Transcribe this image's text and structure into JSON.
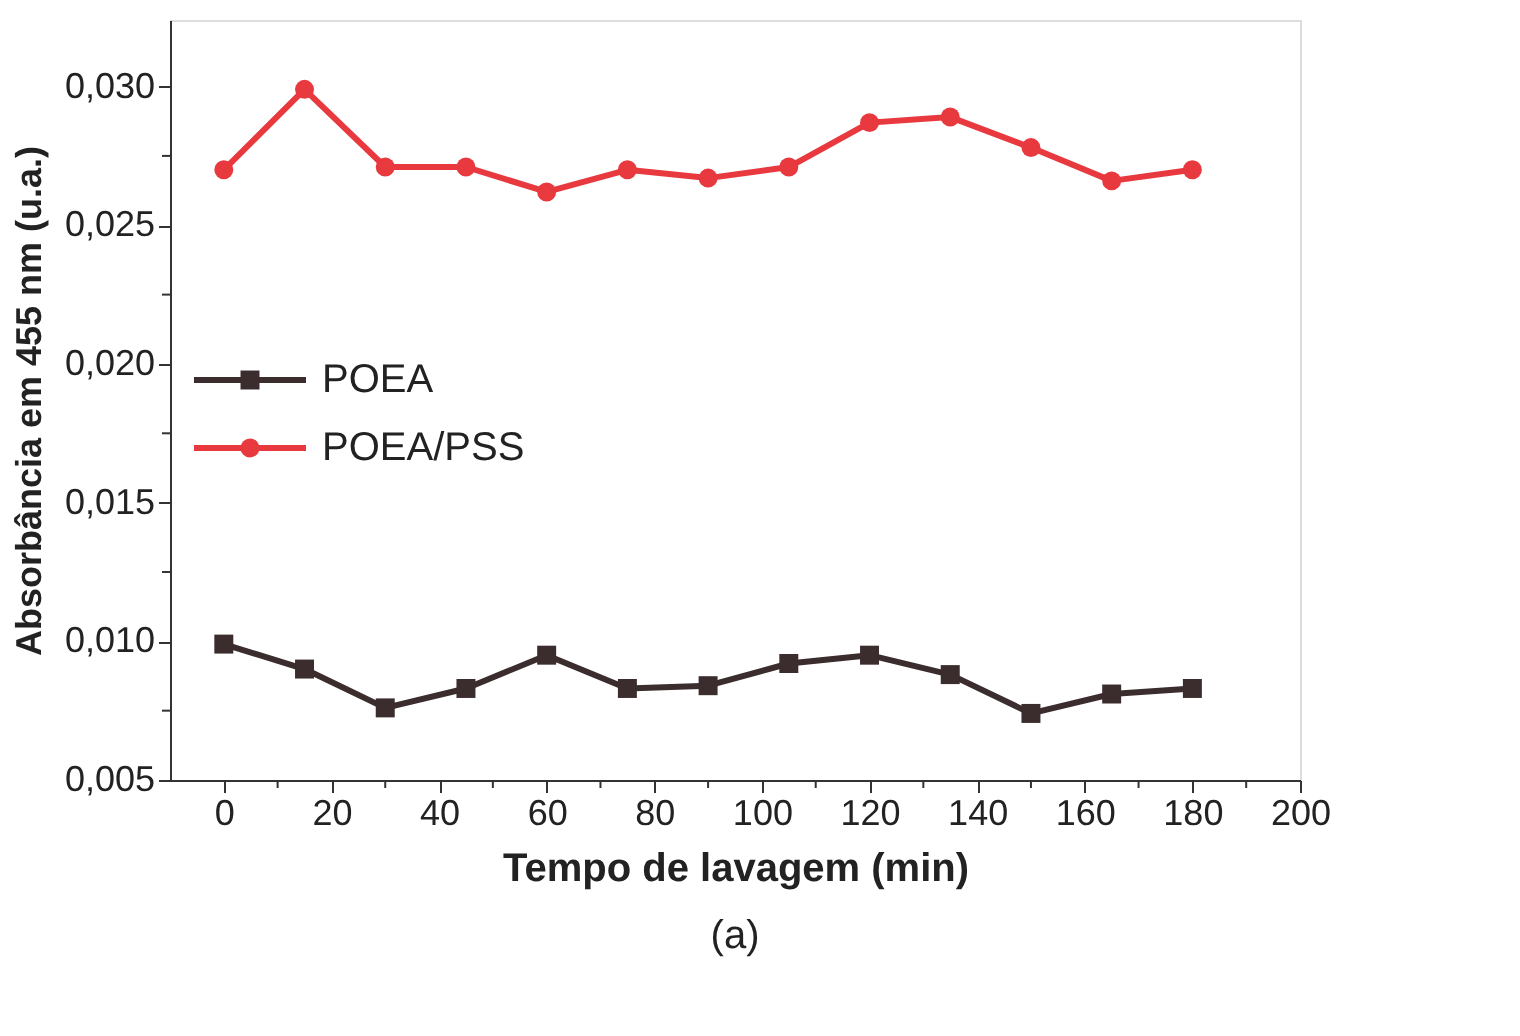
{
  "chart_data": {
    "type": "line",
    "xlabel": "Tempo de lavagem (min)",
    "ylabel": "Absorbância em 455 nm (u.a.)",
    "annotations": [
      "(a)"
    ],
    "x": [
      0,
      15,
      30,
      45,
      60,
      75,
      90,
      105,
      120,
      135,
      150,
      165,
      180
    ],
    "series": [
      {
        "name": "POEA",
        "color": "#3b2c2e",
        "marker": "square",
        "values": [
          0.0099,
          0.009,
          0.0076,
          0.0083,
          0.0095,
          0.0083,
          0.0084,
          0.0092,
          0.0095,
          0.0088,
          0.0074,
          0.0081,
          0.0083
        ]
      },
      {
        "name": "POEA/PSS",
        "color": "#e8393f",
        "marker": "circle",
        "values": [
          0.027,
          0.0299,
          0.0271,
          0.0271,
          0.0262,
          0.027,
          0.0267,
          0.0271,
          0.0287,
          0.0289,
          0.0278,
          0.0266,
          0.027
        ]
      }
    ],
    "xlim": [
      -10,
      200
    ],
    "xticks": [
      0,
      {
        "value": 10,
        "label": null
      },
      20,
      {
        "value": 30,
        "label": null
      },
      40,
      {
        "value": 50,
        "label": null
      },
      60,
      {
        "value": 70,
        "label": null
      },
      80,
      {
        "value": 90,
        "label": null
      },
      100,
      {
        "value": 110,
        "label": null
      },
      120,
      {
        "value": 130,
        "label": null
      },
      140,
      {
        "value": 150,
        "label": null
      },
      160,
      {
        "value": 170,
        "label": null
      },
      180,
      {
        "value": 190,
        "label": null
      },
      200
    ],
    "ylim": [
      0.005,
      0.0324
    ],
    "yticks": [
      {
        "value": 0.005,
        "label": "0,005"
      },
      {
        "value": 0.0075,
        "label": null
      },
      {
        "value": 0.01,
        "label": "0,010"
      },
      {
        "value": 0.0125,
        "label": null
      },
      {
        "value": 0.015,
        "label": "0,015"
      },
      {
        "value": 0.0175,
        "label": null
      },
      {
        "value": 0.02,
        "label": "0,020"
      },
      {
        "value": 0.0225,
        "label": null
      },
      {
        "value": 0.025,
        "label": "0,025"
      },
      {
        "value": 0.0275,
        "label": null
      },
      {
        "value": 0.03,
        "label": "0,030"
      }
    ],
    "grid": false,
    "legend": "left",
    "line_style": "solid"
  }
}
